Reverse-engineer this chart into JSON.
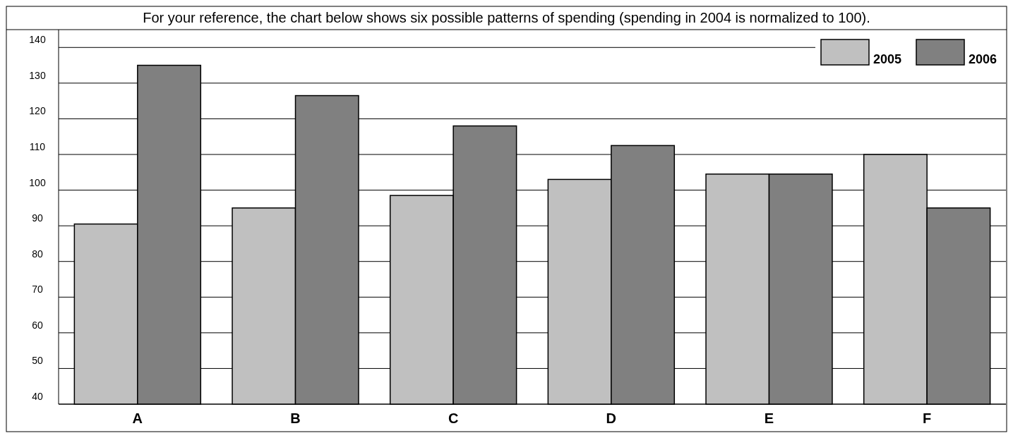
{
  "chart_data": {
    "type": "bar",
    "title": "For your reference, the chart below shows six possible patterns of spending (spending in 2004 is normalized to 100).",
    "categories": [
      "A",
      "B",
      "C",
      "D",
      "E",
      "F"
    ],
    "series": [
      {
        "name": "2005",
        "color": "#c0c0c0",
        "values": [
          90.5,
          95,
          98.5,
          103,
          104.5,
          110
        ]
      },
      {
        "name": "2006",
        "color": "#808080",
        "values": [
          135,
          126.5,
          118,
          112.5,
          104.5,
          95
        ]
      }
    ],
    "ylim": [
      40,
      145
    ],
    "yticks": [
      40,
      50,
      60,
      70,
      80,
      90,
      100,
      110,
      120,
      130,
      140
    ],
    "grid": "y",
    "legend": "top right"
  }
}
